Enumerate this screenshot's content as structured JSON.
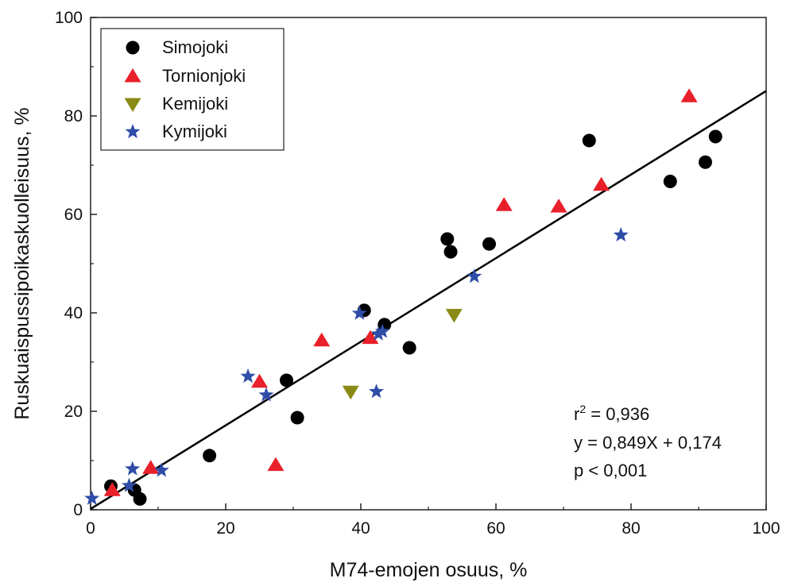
{
  "chart_data": {
    "type": "scatter",
    "xlabel": "M74-emojen osuus, %",
    "ylabel": "Ruskuaispussipoikaskuolleisuus, %",
    "xlim": [
      0,
      100
    ],
    "ylim": [
      0,
      100
    ],
    "x_ticks": [
      "0",
      "20",
      "40",
      "60",
      "80",
      "100"
    ],
    "y_ticks": [
      "0",
      "20",
      "40",
      "60",
      "80",
      "100"
    ],
    "grid": false,
    "legend_position": "top-left",
    "series": [
      {
        "name": "Simojoki",
        "marker": "circle",
        "color": "#000000",
        "points": [
          [
            3,
            4.8
          ],
          [
            6.5,
            4
          ],
          [
            7.3,
            2.2
          ],
          [
            17.6,
            11
          ],
          [
            29,
            26.3
          ],
          [
            30.6,
            18.7
          ],
          [
            40.5,
            40.5
          ],
          [
            43.5,
            37.6
          ],
          [
            47.2,
            32.9
          ],
          [
            52.8,
            55
          ],
          [
            53.3,
            52.4
          ],
          [
            59,
            54
          ],
          [
            73.8,
            75
          ],
          [
            85.8,
            66.7
          ],
          [
            91,
            70.6
          ],
          [
            92.5,
            75.8
          ]
        ]
      },
      {
        "name": "Tornionjoki",
        "marker": "triangle-up",
        "color": "#e8202a",
        "points": [
          [
            3.2,
            4
          ],
          [
            8.9,
            8.5
          ],
          [
            25,
            26
          ],
          [
            27.4,
            9.1
          ],
          [
            34.2,
            34.4
          ],
          [
            41.4,
            34.9
          ],
          [
            61.2,
            61.9
          ],
          [
            69.3,
            61.6
          ],
          [
            75.6,
            66
          ],
          [
            88.6,
            84
          ]
        ]
      },
      {
        "name": "Kemijoki",
        "marker": "triangle-down",
        "color": "#8a8b16",
        "points": [
          [
            38.5,
            24
          ],
          [
            53.8,
            39.6
          ]
        ]
      },
      {
        "name": "Kymijoki",
        "marker": "star",
        "color": "#2f4da8",
        "points": [
          [
            0.2,
            2.3
          ],
          [
            5.7,
            4.9
          ],
          [
            6.2,
            8.3
          ],
          [
            10.5,
            8
          ],
          [
            23.3,
            27.1
          ],
          [
            26,
            23.3
          ],
          [
            39.8,
            39.9
          ],
          [
            42.3,
            24
          ],
          [
            42.6,
            35.7
          ],
          [
            43.2,
            36.2
          ],
          [
            56.8,
            47.4
          ],
          [
            78.5,
            55.8
          ]
        ]
      }
    ],
    "regression": {
      "slope": 0.849,
      "intercept": 0.174,
      "color": "#000000"
    },
    "annotations": {
      "r2_prefix": "r",
      "r2_sup": "2",
      "r2_value": " = 0,936",
      "equation": "y = 0,849X + 0,174",
      "p_value": "p < 0,001"
    }
  }
}
